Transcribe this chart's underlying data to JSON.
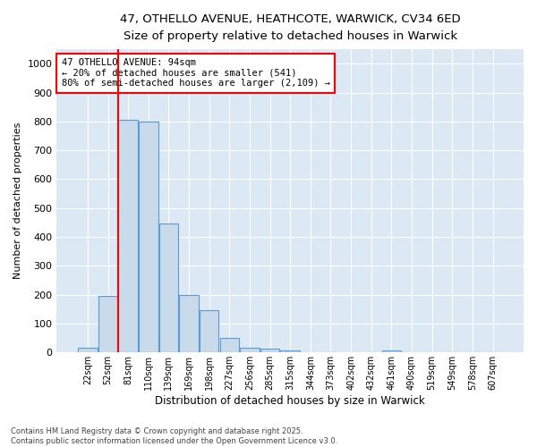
{
  "title_line1": "47, OTHELLO AVENUE, HEATHCOTE, WARWICK, CV34 6ED",
  "title_line2": "Size of property relative to detached houses in Warwick",
  "xlabel": "Distribution of detached houses by size in Warwick",
  "ylabel": "Number of detached properties",
  "bar_labels": [
    "22sqm",
    "52sqm",
    "81sqm",
    "110sqm",
    "139sqm",
    "169sqm",
    "198sqm",
    "227sqm",
    "256sqm",
    "285sqm",
    "315sqm",
    "344sqm",
    "373sqm",
    "402sqm",
    "432sqm",
    "461sqm",
    "490sqm",
    "519sqm",
    "549sqm",
    "578sqm",
    "607sqm"
  ],
  "bar_values": [
    15,
    195,
    805,
    800,
    445,
    200,
    145,
    50,
    15,
    12,
    8,
    0,
    0,
    0,
    0,
    8,
    0,
    0,
    0,
    0,
    0
  ],
  "bar_color": "#c9daea",
  "bar_edge_color": "#5b9bd5",
  "vline_color": "red",
  "annotation_text": "47 OTHELLO AVENUE: 94sqm\n← 20% of detached houses are smaller (541)\n80% of semi-detached houses are larger (2,109) →",
  "annotation_box_color": "white",
  "annotation_box_edge_color": "red",
  "ylim": [
    0,
    1050
  ],
  "yticks": [
    0,
    100,
    200,
    300,
    400,
    500,
    600,
    700,
    800,
    900,
    1000
  ],
  "background_color": "#dce9f5",
  "grid_color": "white",
  "footer_line1": "Contains HM Land Registry data © Crown copyright and database right 2025.",
  "footer_line2": "Contains public sector information licensed under the Open Government Licence v3.0."
}
